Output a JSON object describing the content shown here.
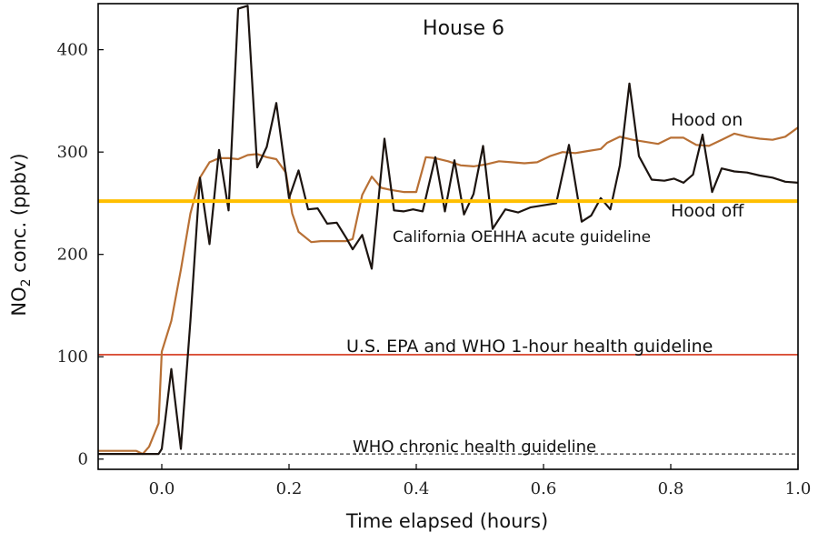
{
  "chart_data": {
    "type": "line",
    "title": "House 6",
    "xlabel": "Time elapsed (hours)",
    "ylabel": "NO2 conc. (ppbv)",
    "ylabel_parts": {
      "pre": "NO",
      "sub": "2",
      "post": " conc. (ppbv)"
    },
    "xlim": [
      -0.1,
      1.0
    ],
    "ylim": [
      -10,
      445
    ],
    "xticks": [
      0.0,
      0.2,
      0.4,
      0.6,
      0.8,
      1.0
    ],
    "xtick_labels": [
      "0.0",
      "0.2",
      "0.4",
      "0.6",
      "0.8",
      "1.0"
    ],
    "yticks": [
      0,
      100,
      200,
      300,
      400
    ],
    "ytick_labels": [
      "0",
      "100",
      "200",
      "300",
      "400"
    ],
    "grid": false,
    "series": [
      {
        "name": "Hood on",
        "color": "#b87035",
        "x": [
          -0.1,
          -0.04,
          -0.03,
          -0.02,
          -0.005,
          0.0,
          0.015,
          0.03,
          0.045,
          0.06,
          0.075,
          0.09,
          0.105,
          0.12,
          0.135,
          0.15,
          0.165,
          0.18,
          0.195,
          0.205,
          0.215,
          0.235,
          0.25,
          0.27,
          0.29,
          0.3,
          0.315,
          0.33,
          0.345,
          0.36,
          0.38,
          0.4,
          0.415,
          0.43,
          0.45,
          0.47,
          0.49,
          0.51,
          0.53,
          0.55,
          0.57,
          0.59,
          0.61,
          0.63,
          0.65,
          0.67,
          0.69,
          0.7,
          0.72,
          0.74,
          0.76,
          0.78,
          0.8,
          0.82,
          0.84,
          0.86,
          0.88,
          0.9,
          0.92,
          0.94,
          0.96,
          0.98,
          1.0
        ],
        "y": [
          8,
          8,
          5,
          12,
          35,
          105,
          135,
          185,
          240,
          275,
          290,
          294,
          294,
          293,
          297,
          298,
          295,
          293,
          280,
          240,
          222,
          212,
          213,
          213,
          213,
          215,
          258,
          276,
          265,
          263,
          261,
          261,
          295,
          294,
          291,
          287,
          286,
          288,
          291,
          290,
          289,
          290,
          296,
          300,
          299,
          301,
          303,
          309,
          315,
          312,
          310,
          308,
          314,
          314,
          307,
          306,
          312,
          318,
          315,
          313,
          312,
          315,
          324
        ]
      },
      {
        "name": "Hood off",
        "color": "#1c1410",
        "x": [
          -0.1,
          -0.02,
          -0.005,
          0.0,
          0.015,
          0.03,
          0.045,
          0.06,
          0.075,
          0.09,
          0.105,
          0.12,
          0.135,
          0.15,
          0.165,
          0.18,
          0.2,
          0.215,
          0.23,
          0.245,
          0.26,
          0.275,
          0.29,
          0.3,
          0.315,
          0.33,
          0.35,
          0.365,
          0.38,
          0.395,
          0.41,
          0.43,
          0.445,
          0.46,
          0.475,
          0.49,
          0.505,
          0.52,
          0.54,
          0.56,
          0.58,
          0.6,
          0.62,
          0.64,
          0.66,
          0.675,
          0.69,
          0.705,
          0.72,
          0.735,
          0.75,
          0.77,
          0.79,
          0.805,
          0.82,
          0.835,
          0.85,
          0.865,
          0.88,
          0.9,
          0.92,
          0.94,
          0.96,
          0.98,
          1.0
        ],
        "y": [
          5,
          5,
          5,
          10,
          88,
          10,
          135,
          275,
          210,
          302,
          243,
          440,
          443,
          285,
          305,
          348,
          255,
          282,
          244,
          245,
          230,
          231,
          216,
          205,
          219,
          186,
          313,
          243,
          242,
          244,
          242,
          295,
          242,
          292,
          239,
          259,
          306,
          225,
          244,
          241,
          246,
          248,
          250,
          307,
          232,
          238,
          255,
          244,
          287,
          367,
          296,
          273,
          272,
          274,
          270,
          278,
          317,
          261,
          284,
          281,
          280,
          277,
          275,
          271,
          270
        ]
      }
    ],
    "reference_lines": [
      {
        "y": 252,
        "color": "#ffbf00",
        "label": "California OEHHA acute guideline"
      },
      {
        "y": 102,
        "color": "#d43418",
        "label": "U.S. EPA and WHO 1-hour health guideline"
      },
      {
        "y": 5,
        "color": "#333333",
        "dashed": true,
        "label": "WHO chronic health guideline"
      }
    ],
    "annotations": {
      "hood_on": "Hood on",
      "hood_off": "Hood off",
      "oehha": "California OEHHA acute guideline",
      "epa": "U.S. EPA and WHO 1-hour health guideline",
      "who_chronic": "WHO chronic health guideline"
    }
  }
}
